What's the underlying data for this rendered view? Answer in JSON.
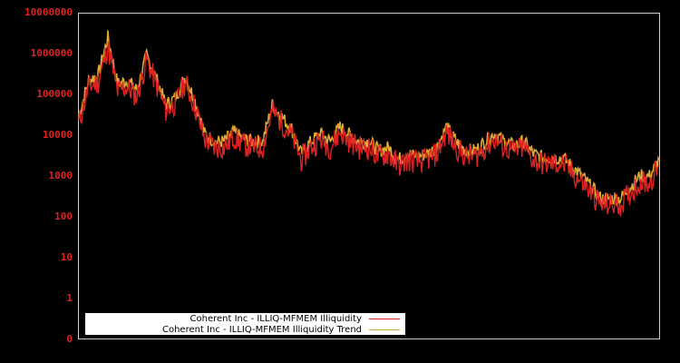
{
  "chart_data": {
    "type": "line",
    "title": "",
    "xlabel": "",
    "ylabel": "",
    "yscale": "log",
    "y_tick_labels": [
      "0",
      "1",
      "10",
      "100",
      "1000",
      "10000",
      "100000",
      "1000000",
      "10000000"
    ],
    "ylim": [
      0,
      10000000
    ],
    "grid": false,
    "legend_position": "bottom-left inside plot",
    "colors": {
      "background": "#000000",
      "axis": "#cccccc",
      "tick_label": "#dd2222",
      "series1": "#dd2222",
      "series2": "#ddaa33"
    },
    "x_index": [
      0,
      2,
      4,
      6,
      8,
      10,
      12,
      14,
      16,
      18,
      20,
      22,
      24,
      26,
      28,
      30,
      32,
      34,
      36,
      38,
      40,
      42,
      44,
      46,
      48,
      50,
      52,
      54,
      56,
      58,
      60,
      62,
      64,
      66,
      68,
      70,
      72,
      74,
      76,
      78,
      80,
      82,
      84,
      86,
      88,
      90,
      92,
      94,
      96,
      98,
      100
    ],
    "series": [
      {
        "name": "Coherent Inc - ILLIQ-MFMEM Illiquidity",
        "values": [
          20000,
          150000,
          200000,
          1500000,
          120000,
          150000,
          90000,
          700000,
          180000,
          40000,
          60000,
          200000,
          50000,
          8000,
          5000,
          5000,
          9000,
          6000,
          5000,
          5000,
          40000,
          20000,
          10000,
          2500,
          5000,
          8000,
          5000,
          12000,
          7000,
          5000,
          5000,
          3000,
          3500,
          1800,
          2500,
          2200,
          2500,
          3500,
          12000,
          5000,
          3000,
          3000,
          5000,
          8000,
          5000,
          4000,
          5000,
          2500,
          2000,
          2000,
          2000
        ]
      },
      {
        "name": "Coherent Inc - ILLIQ-MFMEM Illiquidity Trend",
        "values": [
          30000,
          220000,
          300000,
          2500000,
          180000,
          220000,
          130000,
          900000,
          250000,
          55000,
          85000,
          280000,
          70000,
          11000,
          7000,
          7000,
          12000,
          8000,
          7000,
          7000,
          55000,
          28000,
          14000,
          3500,
          7000,
          11000,
          7000,
          16000,
          10000,
          7000,
          7000,
          4200,
          5000,
          2500,
          3500,
          3000,
          3500,
          5000,
          16000,
          7000,
          4200,
          4200,
          7000,
          11000,
          7000,
          5500,
          7000,
          3500,
          2800,
          2800,
          2800
        ]
      }
    ],
    "series_tail": {
      "x_index": [
        100,
        104,
        108,
        112,
        116,
        118,
        120
      ],
      "illiquidity": [
        2000,
        700,
        200,
        200,
        700,
        700,
        1800
      ],
      "trend": [
        2800,
        1000,
        280,
        280,
        1000,
        1000,
        2500
      ]
    }
  },
  "legend": {
    "items": [
      {
        "label": "Coherent Inc - ILLIQ-MFMEM Illiquidity",
        "color": "#dd2222"
      },
      {
        "label": "Coherent Inc - ILLIQ-MFMEM Illiquidity Trend",
        "color": "#ccaa33"
      }
    ]
  }
}
